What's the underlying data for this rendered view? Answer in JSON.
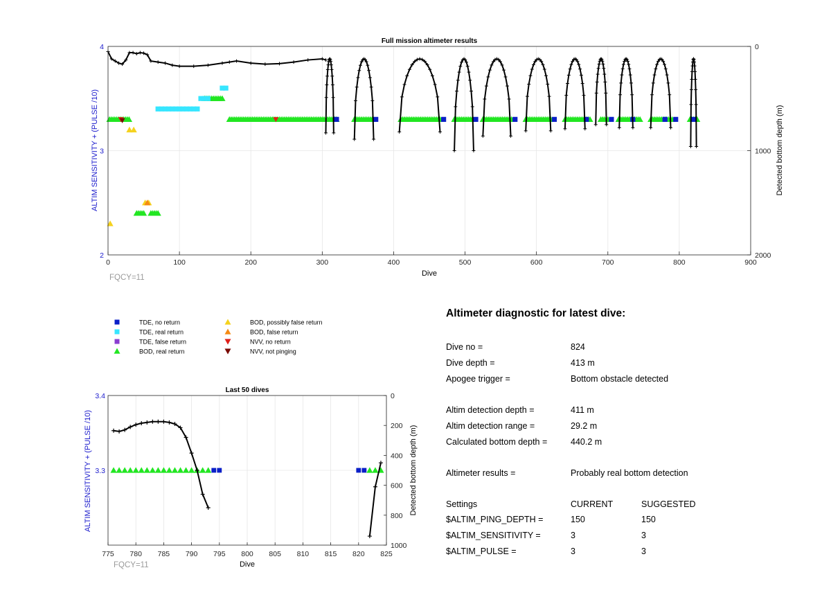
{
  "colors": {
    "tde_no_return": "#0a1fc8",
    "tde_real_return": "#37e6ff",
    "tde_false_return": "#8a3fd0",
    "bod_real_return": "#22e622",
    "bod_possibly_false_return": "#f5d21e",
    "bod_false_return": "#f58a12",
    "nvv_no_return": "#e0201a",
    "nvv_not_pinging": "#7a0a05",
    "depth_line": "#000000",
    "left_axis": "#1a1acc"
  },
  "legend": [
    {
      "key": "tde_no_return",
      "label": "TDE, no return",
      "marker": "square"
    },
    {
      "key": "tde_real_return",
      "label": "TDE, real return",
      "marker": "square"
    },
    {
      "key": "tde_false_return",
      "label": "TDE, false return",
      "marker": "square"
    },
    {
      "key": "bod_real_return",
      "label": "BOD, real return",
      "marker": "triangle-up"
    },
    {
      "key": "bod_possibly_false_return",
      "label": "BOD, possibly false return",
      "marker": "triangle-up"
    },
    {
      "key": "bod_false_return",
      "label": "BOD, false return",
      "marker": "triangle-up"
    },
    {
      "key": "nvv_no_return",
      "label": "NVV, no return",
      "marker": "triangle-down"
    },
    {
      "key": "nvv_not_pinging",
      "label": "NVV, not pinging",
      "marker": "triangle-down"
    }
  ],
  "chart_data": [
    {
      "type": "scatter",
      "title": "Full mission altimeter results",
      "xlabel": "Dive",
      "ylabel": "ALTIM SENSITIVITY + (PULSE /10)",
      "y2label": "Detected bottom depth (m)",
      "xlim": [
        0,
        900
      ],
      "ylim": [
        2,
        4
      ],
      "y2lim": [
        2000,
        0
      ],
      "xticks": [
        "0",
        "100",
        "200",
        "300",
        "400",
        "500",
        "600",
        "700",
        "800",
        "900"
      ],
      "yticks": [
        "2",
        "3",
        "4"
      ],
      "y2ticks": [
        "2000",
        "1000",
        "0"
      ],
      "footnote": "FQCY=11",
      "tde_real_return": [
        [
          70,
          3.4
        ],
        [
          75,
          3.4
        ],
        [
          80,
          3.4
        ],
        [
          85,
          3.4
        ],
        [
          90,
          3.4
        ],
        [
          95,
          3.4
        ],
        [
          100,
          3.4
        ],
        [
          105,
          3.4
        ],
        [
          110,
          3.4
        ],
        [
          115,
          3.4
        ],
        [
          120,
          3.4
        ],
        [
          125,
          3.4
        ],
        [
          130,
          3.5
        ],
        [
          135,
          3.5
        ],
        [
          140,
          3.5
        ],
        [
          160,
          3.6
        ],
        [
          165,
          3.6
        ]
      ],
      "tde_no_return": [
        [
          320,
          3.3
        ],
        [
          375,
          3.3
        ],
        [
          470,
          3.3
        ],
        [
          515,
          3.3
        ],
        [
          570,
          3.3
        ],
        [
          625,
          3.3
        ],
        [
          670,
          3.3
        ],
        [
          705,
          3.3
        ],
        [
          735,
          3.3
        ],
        [
          780,
          3.3
        ],
        [
          795,
          3.3
        ],
        [
          820,
          3.3
        ]
      ],
      "bod_runs": [
        [
          2,
          30,
          3.3
        ],
        [
          170,
          320,
          3.3
        ],
        [
          345,
          372,
          3.3
        ],
        [
          410,
          465,
          3.3
        ],
        [
          485,
          510,
          3.3
        ],
        [
          525,
          565,
          3.3
        ],
        [
          585,
          620,
          3.3
        ],
        [
          640,
          675,
          3.3
        ],
        [
          690,
          700,
          3.3
        ],
        [
          715,
          745,
          3.3
        ],
        [
          760,
          790,
          3.3
        ],
        [
          815,
          825,
          3.3
        ],
        [
          40,
          52,
          2.4
        ],
        [
          60,
          72,
          2.4
        ],
        [
          135,
          160,
          3.5
        ]
      ],
      "bod_possibly_false_return": [
        [
          3,
          2.3
        ],
        [
          30,
          3.2
        ],
        [
          36,
          3.2
        ],
        [
          52,
          2.5
        ],
        [
          57,
          2.5
        ]
      ],
      "bod_false_return": [
        [
          55,
          2.5
        ]
      ],
      "nvv_no_return": [
        [
          18,
          3.3
        ],
        [
          235,
          3.3
        ]
      ],
      "nvv_not_pinging": [
        [
          20,
          3.29
        ]
      ],
      "depth_trace_surface": [
        [
          0,
          50
        ],
        [
          5,
          120
        ],
        [
          10,
          140
        ],
        [
          15,
          160
        ],
        [
          20,
          170
        ],
        [
          25,
          130
        ],
        [
          30,
          60
        ],
        [
          35,
          60
        ],
        [
          40,
          70
        ],
        [
          45,
          60
        ],
        [
          50,
          65
        ],
        [
          55,
          80
        ],
        [
          60,
          140
        ],
        [
          70,
          150
        ],
        [
          80,
          160
        ],
        [
          90,
          180
        ],
        [
          100,
          190
        ],
        [
          120,
          190
        ],
        [
          140,
          180
        ],
        [
          160,
          160
        ],
        [
          170,
          150
        ],
        [
          180,
          140
        ],
        [
          200,
          160
        ],
        [
          220,
          170
        ],
        [
          240,
          165
        ],
        [
          260,
          150
        ],
        [
          280,
          130
        ],
        [
          300,
          120
        ],
        [
          305,
          130
        ]
      ],
      "dive_profiles": [
        {
          "start": 305,
          "end": 316,
          "depth": 830
        },
        {
          "start": 345,
          "end": 372,
          "depth": 890
        },
        {
          "start": 408,
          "end": 465,
          "depth": 820
        },
        {
          "start": 485,
          "end": 512,
          "depth": 1000
        },
        {
          "start": 525,
          "end": 564,
          "depth": 860
        },
        {
          "start": 585,
          "end": 620,
          "depth": 810
        },
        {
          "start": 640,
          "end": 668,
          "depth": 790
        },
        {
          "start": 683,
          "end": 698,
          "depth": 750
        },
        {
          "start": 716,
          "end": 735,
          "depth": 780
        },
        {
          "start": 760,
          "end": 788,
          "depth": 780
        },
        {
          "start": 816,
          "end": 824,
          "depth": 960
        }
      ]
    },
    {
      "type": "scatter",
      "title": "Last 50 dives",
      "xlabel": "Dive",
      "ylabel": "ALTIM SENSITIVITY + (PULSE /10)",
      "y2label": "Detected bottom depth (m)",
      "xlim": [
        775,
        825
      ],
      "ylim": [
        3.2,
        3.4
      ],
      "y2lim": [
        1000,
        0
      ],
      "xticks": [
        "775",
        "780",
        "785",
        "790",
        "795",
        "800",
        "805",
        "810",
        "815",
        "820",
        "825"
      ],
      "yticks": [
        "3.3",
        "3.4"
      ],
      "y2ticks": [
        "1000",
        "800",
        "600",
        "400",
        "200",
        "0"
      ],
      "footnote": "FQCY=11",
      "bod_real_return_x": [
        776,
        777,
        778,
        779,
        780,
        781,
        782,
        783,
        784,
        785,
        786,
        787,
        788,
        789,
        790,
        791,
        792,
        793,
        822,
        823,
        824
      ],
      "tde_no_return_x": [
        794,
        795,
        820,
        821
      ],
      "marker_y": 3.3,
      "depth_series_1": [
        [
          776,
          235
        ],
        [
          777,
          240
        ],
        [
          778,
          230
        ],
        [
          779,
          210
        ],
        [
          780,
          195
        ],
        [
          781,
          185
        ],
        [
          782,
          180
        ],
        [
          783,
          175
        ],
        [
          784,
          175
        ],
        [
          785,
          175
        ],
        [
          786,
          180
        ],
        [
          787,
          190
        ],
        [
          788,
          215
        ],
        [
          789,
          280
        ],
        [
          790,
          385
        ],
        [
          791,
          500
        ],
        [
          792,
          660
        ],
        [
          793,
          750
        ]
      ],
      "depth_series_2": [
        [
          822,
          940
        ],
        [
          823,
          610
        ],
        [
          824,
          450
        ]
      ]
    }
  ],
  "diagnostic": {
    "title": "Altimeter diagnostic for latest dive:",
    "rows": [
      {
        "label": "Dive no =",
        "value": "824"
      },
      {
        "label": "Dive depth =",
        "value": "413 m"
      },
      {
        "label": "Apogee trigger =",
        "value": "Bottom obstacle detected"
      },
      {
        "label": "Altim detection depth =",
        "value": "411 m"
      },
      {
        "label": "Altim detection range =",
        "value": "29.2 m"
      },
      {
        "label": "Calculated bottom depth =",
        "value": "440.2 m"
      },
      {
        "label": "Altimeter results =",
        "value": "Probably real bottom detection"
      }
    ],
    "settings_header": {
      "label": "Settings",
      "current": "CURRENT",
      "suggested": "SUGGESTED"
    },
    "settings": [
      {
        "label": "$ALTIM_PING_DEPTH =",
        "current": "150",
        "suggested": "150"
      },
      {
        "label": "$ALTIM_SENSITIVITY =",
        "current": "3",
        "suggested": "3"
      },
      {
        "label": "$ALTIM_PULSE =",
        "current": "3",
        "suggested": "3"
      }
    ]
  }
}
